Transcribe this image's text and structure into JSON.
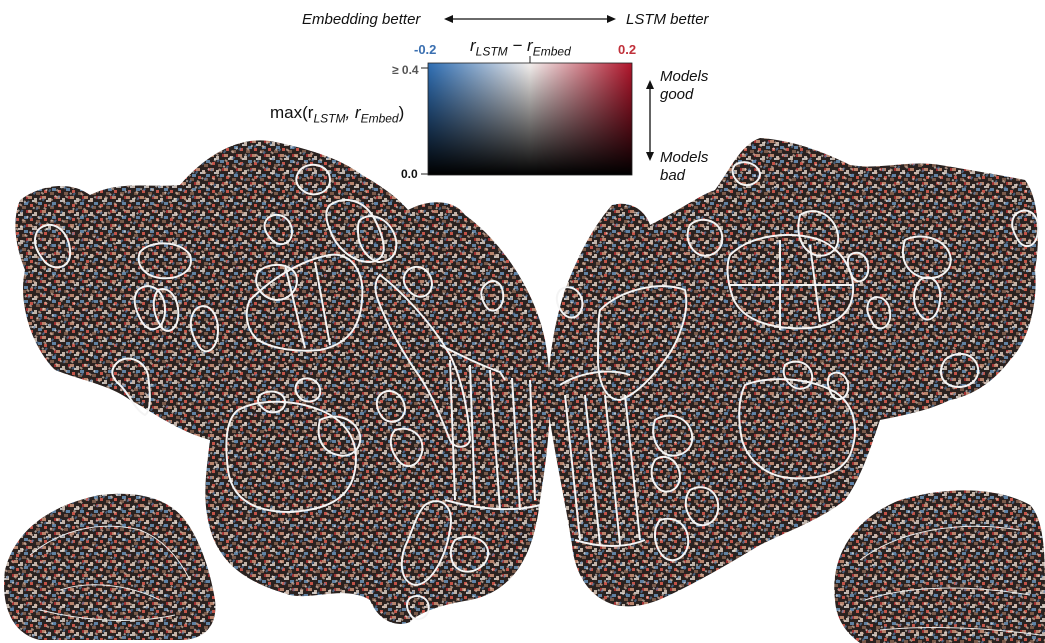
{
  "header": {
    "left_label": "Embedding better",
    "right_label": "LSTM better"
  },
  "colorbar": {
    "min_label": "-0.2",
    "max_label": "0.2",
    "diff_r": "r",
    "diff_sub1": "LSTM",
    "diff_minus": " − r",
    "diff_sub2": "Embed",
    "y_top_label": "≥ 0.4",
    "y_bottom_label": "0.0",
    "y_formula_prefix": "max(r",
    "y_formula_sub1": "LSTM",
    "y_formula_mid": ", r",
    "y_formula_sub2": "Embed",
    "y_formula_suffix": ")",
    "good_label": "Models good",
    "bad_label": "Models bad",
    "colors": {
      "negative": "#3f7fc0",
      "positive": "#b81d2c",
      "low": "#000000",
      "mid_high": "#f2f2f2"
    }
  },
  "brain_colors": {
    "base": "#2a2220",
    "speckles": [
      "#e8d8cc",
      "#b8846c",
      "#6f9ac3",
      "#c45448",
      "#ffffff",
      "#7a5a4a",
      "#a03032"
    ],
    "outline": "#f4f4f4"
  }
}
